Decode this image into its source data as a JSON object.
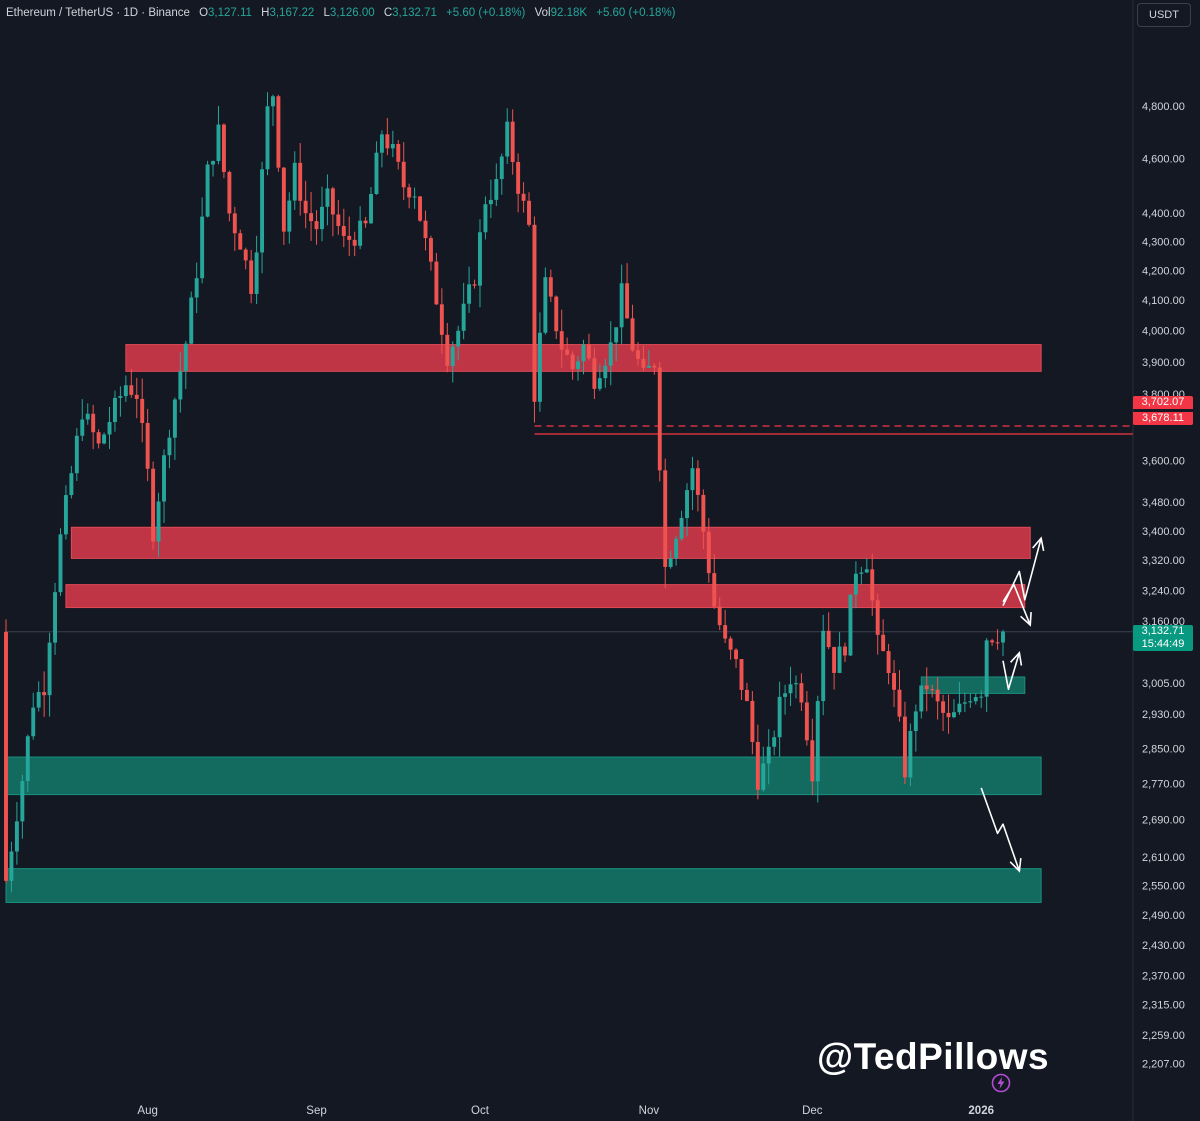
{
  "header": {
    "symbol": "Ethereum / TetherUS · 1D · Binance",
    "o_label": "O",
    "o": "3,127.11",
    "h_label": "H",
    "h": "3,167.22",
    "l_label": "L",
    "l": "3,126.00",
    "c_label": "C",
    "c": "3,132.71",
    "change": "+5.60 (+0.18%)",
    "vol_label": "Vol",
    "vol": "92.18K",
    "vol_change": "+5.60 (+0.18%)"
  },
  "currency_button": "USDT",
  "watermark": "@TedPillows",
  "icons": {
    "bolt": "lightning-bolt-icon",
    "currency": "currency-selector"
  },
  "colors": {
    "background": "#141823",
    "up": "#26a69a",
    "down": "#ef5350",
    "resistance_zone": "#d1394a",
    "support_zone": "#137a6a",
    "arrow": "#ffffff"
  },
  "price_labels": {
    "resistance_line_1": "3,702.07",
    "resistance_line_2": "3,678.11",
    "last_price": "3,132.71",
    "countdown": "15:44:49"
  },
  "chart_data": {
    "type": "candlestick",
    "title": "Ethereum / TetherUS · 1D · Binance",
    "y_scale": "log",
    "ylim": [
      2160,
      4950
    ],
    "y_ticks": [
      4800,
      4600,
      4400,
      4300,
      4200,
      4100,
      4000,
      3900,
      3800,
      3600,
      3480,
      3400,
      3320,
      3240,
      3160,
      3005,
      2930,
      2850,
      2770,
      2690,
      2610,
      2550,
      2490,
      2430,
      2370,
      2315,
      2259,
      2207
    ],
    "y_tick_labels": [
      "4,800.00",
      "4,600.00",
      "4,400.00",
      "4,300.00",
      "4,200.00",
      "4,100.00",
      "4,000.00",
      "3,900.00",
      "3,800.00",
      "3,600.00",
      "3,480.00",
      "3,400.00",
      "3,320.00",
      "3,240.00",
      "3,160.00",
      "3,005.00",
      "2,930.00",
      "2,850.00",
      "2,770.00",
      "2,690.00",
      "2,610.00",
      "2,550.00",
      "2,490.00",
      "2,430.00",
      "2,370.00",
      "2,315.00",
      "2,259.00",
      "2,207.00"
    ],
    "x_labels": [
      "Aug",
      "Sep",
      "Oct",
      "Nov",
      "Dec",
      "2026"
    ],
    "x_label_dates": [
      "2025-08-01",
      "2025-09-01",
      "2025-10-01",
      "2025-11-01",
      "2025-12-01",
      "2026-01-01"
    ],
    "x_range": [
      "2025-07-06",
      "2026-01-05"
    ],
    "close_anchors": [
      [
        "2025-07-06",
        2560
      ],
      [
        "2025-07-09",
        2780
      ],
      [
        "2025-07-11",
        2960
      ],
      [
        "2025-07-13",
        3000
      ],
      [
        "2025-07-16",
        3380
      ],
      [
        "2025-07-18",
        3560
      ],
      [
        "2025-07-20",
        3750
      ],
      [
        "2025-07-23",
        3640
      ],
      [
        "2025-07-25",
        3720
      ],
      [
        "2025-07-28",
        3830
      ],
      [
        "2025-07-30",
        3800
      ],
      [
        "2025-08-01",
        3560
      ],
      [
        "2025-08-02",
        3400
      ],
      [
        "2025-08-05",
        3700
      ],
      [
        "2025-08-08",
        3960
      ],
      [
        "2025-08-10",
        4200
      ],
      [
        "2025-08-12",
        4550
      ],
      [
        "2025-08-14",
        4700
      ],
      [
        "2025-08-16",
        4400
      ],
      [
        "2025-08-18",
        4300
      ],
      [
        "2025-08-20",
        4150
      ],
      [
        "2025-08-21",
        4300
      ],
      [
        "2025-08-23",
        4780
      ],
      [
        "2025-08-24",
        4850
      ],
      [
        "2025-08-26",
        4350
      ],
      [
        "2025-08-28",
        4550
      ],
      [
        "2025-08-30",
        4400
      ],
      [
        "2025-09-01",
        4350
      ],
      [
        "2025-09-03",
        4450
      ],
      [
        "2025-09-06",
        4300
      ],
      [
        "2025-09-08",
        4320
      ],
      [
        "2025-09-10",
        4350
      ],
      [
        "2025-09-13",
        4700
      ],
      [
        "2025-09-15",
        4620
      ],
      [
        "2025-09-17",
        4500
      ],
      [
        "2025-09-19",
        4480
      ],
      [
        "2025-09-22",
        4200
      ],
      [
        "2025-09-25",
        3920
      ],
      [
        "2025-09-27",
        4000
      ],
      [
        "2025-09-30",
        4180
      ],
      [
        "2025-10-02",
        4450
      ],
      [
        "2025-10-04",
        4500
      ],
      [
        "2025-10-06",
        4700
      ],
      [
        "2025-10-08",
        4500
      ],
      [
        "2025-10-10",
        4350
      ],
      [
        "2025-10-11",
        3800
      ],
      [
        "2025-10-13",
        4150
      ],
      [
        "2025-10-16",
        3950
      ],
      [
        "2025-10-18",
        3880
      ],
      [
        "2025-10-20",
        3950
      ],
      [
        "2025-10-22",
        3850
      ],
      [
        "2025-10-25",
        3950
      ],
      [
        "2025-10-27",
        4120
      ],
      [
        "2025-10-29",
        3950
      ],
      [
        "2025-10-31",
        3850
      ],
      [
        "2025-11-02",
        3900
      ],
      [
        "2025-11-03",
        3600
      ],
      [
        "2025-11-04",
        3300
      ],
      [
        "2025-11-06",
        3400
      ],
      [
        "2025-11-09",
        3580
      ],
      [
        "2025-11-11",
        3400
      ],
      [
        "2025-11-13",
        3200
      ],
      [
        "2025-11-15",
        3100
      ],
      [
        "2025-11-17",
        3050
      ],
      [
        "2025-11-19",
        2950
      ],
      [
        "2025-11-21",
        2780
      ],
      [
        "2025-11-23",
        2830
      ],
      [
        "2025-11-25",
        2950
      ],
      [
        "2025-11-27",
        3020
      ],
      [
        "2025-11-29",
        2980
      ],
      [
        "2025-12-01",
        2800
      ],
      [
        "2025-12-03",
        3150
      ],
      [
        "2025-12-05",
        3050
      ],
      [
        "2025-12-07",
        3100
      ],
      [
        "2025-12-09",
        3300
      ],
      [
        "2025-12-11",
        3320
      ],
      [
        "2025-12-13",
        3100
      ],
      [
        "2025-12-15",
        3050
      ],
      [
        "2025-12-17",
        2900
      ],
      [
        "2025-12-18",
        2800
      ],
      [
        "2025-12-20",
        2950
      ],
      [
        "2025-12-22",
        3000
      ],
      [
        "2025-12-24",
        2950
      ],
      [
        "2025-12-26",
        2910
      ],
      [
        "2025-12-28",
        2940
      ],
      [
        "2025-12-30",
        2980
      ],
      [
        "2026-01-01",
        2990
      ],
      [
        "2026-01-02",
        3120
      ],
      [
        "2026-01-05",
        3132.71
      ]
    ],
    "zones": [
      {
        "kind": "resistance",
        "from": "2025-07-28",
        "to": "2026-01-12",
        "low": 3870,
        "high": 3955
      },
      {
        "kind": "resistance",
        "from": "2025-07-18",
        "to": "2026-01-10",
        "low": 3325,
        "high": 3410
      },
      {
        "kind": "resistance",
        "from": "2025-07-17",
        "to": "2026-01-09",
        "low": 3195,
        "high": 3255
      },
      {
        "kind": "support",
        "from": "2025-12-21",
        "to": "2026-01-09",
        "low": 2980,
        "high": 3020
      },
      {
        "kind": "support",
        "from": "2025-07-06",
        "to": "2026-01-12",
        "low": 2745,
        "high": 2830
      },
      {
        "kind": "support",
        "from": "2025-07-06",
        "to": "2026-01-12",
        "low": 2515,
        "high": 2585
      }
    ],
    "horizontal_lines": [
      {
        "price": 3702.07,
        "style": "dashed",
        "from": "2025-10-11"
      },
      {
        "price": 3678.11,
        "style": "solid",
        "from": "2025-10-11"
      },
      {
        "price": 3132.71,
        "style": "thin",
        "from": "2025-07-06"
      }
    ],
    "projections": [
      {
        "points": [
          [
            "2026-01-05",
            3200
          ],
          [
            "2026-01-08",
            3290
          ],
          [
            "2026-01-09",
            3215
          ],
          [
            "2026-01-12",
            3380
          ]
        ]
      },
      {
        "points": [
          [
            "2026-01-05",
            3210
          ],
          [
            "2026-01-07",
            3255
          ],
          [
            "2026-01-10",
            3150
          ]
        ]
      },
      {
        "points": [
          [
            "2026-01-05",
            3060
          ],
          [
            "2026-01-06",
            2990
          ],
          [
            "2026-01-08",
            3080
          ]
        ]
      },
      {
        "points": [
          [
            "2026-01-01",
            2760
          ],
          [
            "2026-01-04",
            2660
          ],
          [
            "2026-01-05",
            2680
          ],
          [
            "2026-01-08",
            2580
          ]
        ]
      }
    ]
  }
}
